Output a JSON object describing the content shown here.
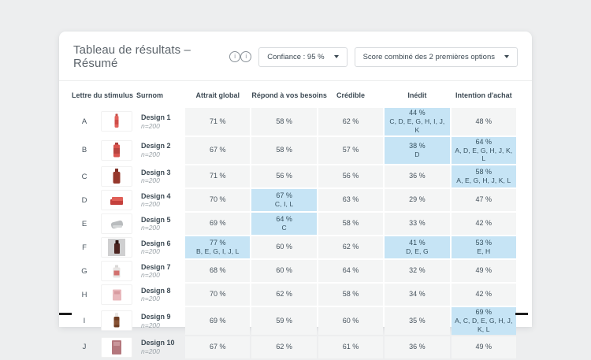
{
  "colors": {
    "page_bg": "#edeeef",
    "card_bg": "#ffffff",
    "cell_gray": "#f4f5f5",
    "cell_highlight": "#c6e4f5",
    "text_dark": "#3d4a54",
    "text_secondary": "#99a1a7"
  },
  "header": {
    "title": "Tableau de résultats – Résumé",
    "title_info_icon": "info-icon",
    "standalone_info_icon": "info-icon",
    "confidence_dropdown_label": "Confiance : 95 %",
    "score_dropdown_label": "Score combiné des 2 premières options"
  },
  "table": {
    "columns": [
      "Lettre du stimulus",
      "Surnom",
      "Attrait global",
      "Répond à vos besoins",
      "Crédible",
      "Inédit",
      "Intention d'achat"
    ],
    "rows": [
      {
        "letter": "A",
        "name": "Design 1",
        "n": "n=200",
        "thumb": {
          "icon": "slim-red-bottle-thumbnail",
          "shapes": [
            {
              "x": 13.5,
              "y": 1.5,
              "w": 3,
              "h": 3,
              "c": "#c24b44",
              "rx": 0.5
            },
            {
              "x": 12.5,
              "y": 4,
              "w": 5,
              "h": 15,
              "c": "#e2625c",
              "rx": 1.5
            },
            {
              "x": 12.5,
              "y": 9,
              "w": 5,
              "h": 6,
              "c": "#cf4d48",
              "rx": 0
            }
          ]
        },
        "cells": [
          {
            "value": "71 %"
          },
          {
            "value": "58 %"
          },
          {
            "value": "62 %"
          },
          {
            "value": "44 %",
            "letters": "C, D, E, G, H, I, J, K",
            "highlight": true
          },
          {
            "value": "48 %"
          }
        ]
      },
      {
        "letter": "B",
        "name": "Design 2",
        "n": "n=200",
        "thumb": {
          "icon": "red-labeled-bottle-thumbnail",
          "shapes": [
            {
              "x": 13,
              "y": 1,
              "w": 4,
              "h": 3,
              "c": "#a83c38",
              "rx": 0.5
            },
            {
              "x": 11,
              "y": 3.5,
              "w": 8,
              "h": 16,
              "c": "#d9544e",
              "rx": 1.5
            },
            {
              "x": 11,
              "y": 8,
              "w": 8,
              "h": 7,
              "c": "#b8443f",
              "rx": 0
            }
          ]
        },
        "cells": [
          {
            "value": "67 %"
          },
          {
            "value": "58 %"
          },
          {
            "value": "57 %"
          },
          {
            "value": "38 %",
            "letters": "D",
            "highlight": true
          },
          {
            "value": "64 %",
            "letters": "A, D, E, G, H, J, K, L",
            "highlight": true
          }
        ]
      },
      {
        "letter": "C",
        "name": "Design 3",
        "n": "n=200",
        "thumb": {
          "icon": "dark-red-bottle-thumbnail",
          "shapes": [
            {
              "x": 13,
              "y": 1,
              "w": 4,
              "h": 5,
              "c": "#7e2f25",
              "rx": 0.5
            },
            {
              "x": 10.5,
              "y": 5,
              "w": 9,
              "h": 15,
              "c": "#96382c",
              "rx": 2
            }
          ]
        },
        "cells": [
          {
            "value": "71 %"
          },
          {
            "value": "56 %"
          },
          {
            "value": "56 %"
          },
          {
            "value": "36 %"
          },
          {
            "value": "58 %",
            "letters": "A, E, G, H, J, K, L",
            "highlight": true
          }
        ]
      },
      {
        "letter": "D",
        "name": "Design 4",
        "n": "n=200",
        "thumb": {
          "icon": "flat-red-box-thumbnail",
          "shapes": [
            {
              "x": 7,
              "y": 10,
              "w": 16,
              "h": 7,
              "c": "#c4403c",
              "rx": 1
            },
            {
              "x": 9,
              "y": 7,
              "w": 14,
              "h": 5,
              "c": "#e06058",
              "rx": 1
            }
          ]
        },
        "cells": [
          {
            "value": "70 %"
          },
          {
            "value": "67 %",
            "letters": "C, I, L",
            "highlight": true
          },
          {
            "value": "63 %"
          },
          {
            "value": "29 %"
          },
          {
            "value": "47 %"
          }
        ]
      },
      {
        "letter": "E",
        "name": "Design 5",
        "n": "n=200",
        "thumb": {
          "icon": "gray-pouch-thumbnail",
          "shapes": [
            {
              "x": 8,
              "y": 8,
              "w": 15,
              "h": 8,
              "c": "#b9bcbe",
              "rx": 3,
              "rot": -14
            },
            {
              "x": 10,
              "y": 13,
              "w": 12,
              "h": 3,
              "c": "#d6d8d9",
              "rx": 1.5
            }
          ]
        },
        "cells": [
          {
            "value": "69 %"
          },
          {
            "value": "64 %",
            "letters": "C",
            "highlight": true
          },
          {
            "value": "58 %"
          },
          {
            "value": "33 %"
          },
          {
            "value": "42 %"
          }
        ]
      },
      {
        "letter": "F",
        "name": "Design 6",
        "n": "n=200",
        "thumb": {
          "icon": "bottle-photo-thumbnail",
          "shapes": [
            {
              "x": 4,
              "y": 0,
              "w": 22,
              "h": 22,
              "c": "#cfcfd0",
              "rx": 0
            },
            {
              "x": 12,
              "y": 6,
              "w": 7,
              "h": 13,
              "c": "#4c2420",
              "rx": 1
            },
            {
              "x": 13.5,
              "y": 2,
              "w": 4,
              "h": 5,
              "c": "#2e1512",
              "rx": 0.5
            }
          ]
        },
        "cells": [
          {
            "value": "77 %",
            "letters": "B, E, G, I, J, L",
            "highlight": true
          },
          {
            "value": "60 %"
          },
          {
            "value": "62 %"
          },
          {
            "value": "41 %",
            "letters": "D, E, G",
            "highlight": true
          },
          {
            "value": "53 %",
            "letters": "E, H",
            "highlight": true
          }
        ]
      },
      {
        "letter": "G",
        "name": "Design 7",
        "n": "n=200",
        "thumb": {
          "icon": "white-bottle-thumbnail",
          "shapes": [
            {
              "x": 13,
              "y": 3.5,
              "w": 4,
              "h": 3.5,
              "c": "#d9d7d6",
              "rx": 0.5
            },
            {
              "x": 10.5,
              "y": 6.5,
              "w": 9,
              "h": 13,
              "c": "#e7e4e3",
              "rx": 1.5
            },
            {
              "x": 11.5,
              "y": 10.5,
              "w": 7,
              "h": 6,
              "c": "#d2706e",
              "rx": 0
            }
          ]
        },
        "cells": [
          {
            "value": "68 %"
          },
          {
            "value": "60 %"
          },
          {
            "value": "64 %"
          },
          {
            "value": "32 %"
          },
          {
            "value": "49 %"
          }
        ]
      },
      {
        "letter": "H",
        "name": "Design 8",
        "n": "n=200",
        "thumb": {
          "icon": "pink-box-thumbnail",
          "shapes": [
            {
              "x": 10,
              "y": 4.5,
              "w": 11,
              "h": 14,
              "c": "#e8b8bc",
              "rx": 1
            },
            {
              "x": 12,
              "y": 6.5,
              "w": 7,
              "h": 4,
              "c": "#d89ba0",
              "rx": 0.5
            }
          ]
        },
        "cells": [
          {
            "value": "70 %"
          },
          {
            "value": "62 %"
          },
          {
            "value": "58 %"
          },
          {
            "value": "34 %"
          },
          {
            "value": "42 %"
          }
        ]
      },
      {
        "letter": "I",
        "name": "Design 9",
        "n": "n=200",
        "thumb": {
          "icon": "dropper-bottle-thumbnail",
          "shapes": [
            {
              "x": 13,
              "y": 1,
              "w": 4,
              "h": 5,
              "c": "#e9e7e5",
              "rx": 1
            },
            {
              "x": 11.5,
              "y": 6,
              "w": 7,
              "h": 13.5,
              "c": "#6e3c22",
              "rx": 1.5
            },
            {
              "x": 11.5,
              "y": 10.5,
              "w": 7,
              "h": 6,
              "c": "#875234",
              "rx": 0
            }
          ]
        },
        "cells": [
          {
            "value": "69 %"
          },
          {
            "value": "59 %"
          },
          {
            "value": "60 %"
          },
          {
            "value": "35 %"
          },
          {
            "value": "69 %",
            "letters": "A, C, D, E, G, H, J, K, L",
            "highlight": true
          }
        ]
      },
      {
        "letter": "J",
        "name": "Design 10",
        "n": "n=200",
        "thumb": {
          "icon": "mauve-carton-thumbnail",
          "shapes": [
            {
              "x": 9,
              "y": 2,
              "w": 12,
              "h": 18,
              "c": "#b4777d",
              "rx": 1
            },
            {
              "x": 11,
              "y": 4,
              "w": 8,
              "h": 5,
              "c": "#c9969b",
              "rx": 0.5
            }
          ]
        },
        "cells": [
          {
            "value": "67 %"
          },
          {
            "value": "62 %"
          },
          {
            "value": "61 %"
          },
          {
            "value": "36 %"
          },
          {
            "value": "49 %"
          }
        ]
      }
    ]
  }
}
